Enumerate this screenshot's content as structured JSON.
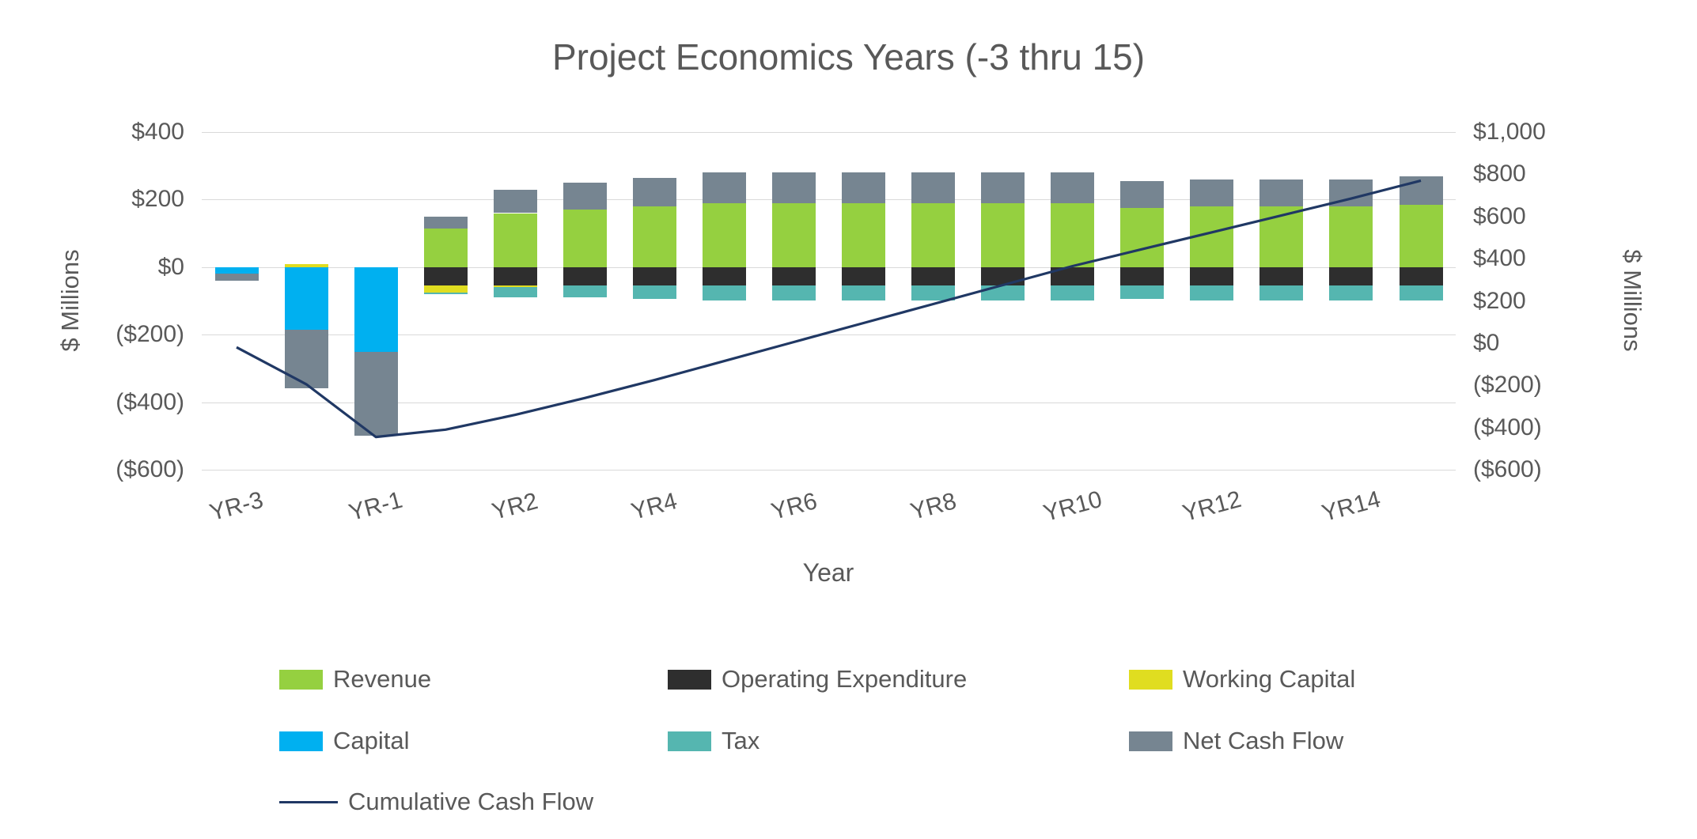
{
  "chart_data": {
    "type": "bar",
    "title": "Project Economics Years (-3 thru 15)",
    "xlabel": "Year",
    "ylabel_left": "$ Millions",
    "ylabel_right": "$ Millions",
    "grid": true,
    "legend_position": "bottom",
    "left_axis": {
      "min": -600,
      "max": 400,
      "ticks": [
        {
          "value": 400,
          "label": "$400"
        },
        {
          "value": 200,
          "label": "$200"
        },
        {
          "value": 0,
          "label": "$0"
        },
        {
          "value": -200,
          "label": "($200)"
        },
        {
          "value": -400,
          "label": "($400)"
        },
        {
          "value": -600,
          "label": "($600)"
        }
      ]
    },
    "right_axis": {
      "min": -600,
      "max": 1000,
      "ticks": [
        {
          "value": 1000,
          "label": "$1,000"
        },
        {
          "value": 800,
          "label": "$800"
        },
        {
          "value": 600,
          "label": "$600"
        },
        {
          "value": 400,
          "label": "$400"
        },
        {
          "value": 200,
          "label": "$200"
        },
        {
          "value": 0,
          "label": "$0"
        },
        {
          "value": -200,
          "label": "($200)"
        },
        {
          "value": -400,
          "label": "($400)"
        },
        {
          "value": -600,
          "label": "($600)"
        }
      ]
    },
    "categories": [
      "YR-3",
      "YR-2",
      "YR-1",
      "YR1",
      "YR2",
      "YR3",
      "YR4",
      "YR5",
      "YR6",
      "YR7",
      "YR8",
      "YR9",
      "YR10",
      "YR11",
      "YR12",
      "YR13",
      "YR14",
      "YR15"
    ],
    "x_ticks": [
      {
        "index": 0,
        "label": "YR-3"
      },
      {
        "index": 2,
        "label": "YR-1"
      },
      {
        "index": 4,
        "label": "YR2"
      },
      {
        "index": 6,
        "label": "YR4"
      },
      {
        "index": 8,
        "label": "YR6"
      },
      {
        "index": 10,
        "label": "YR8"
      },
      {
        "index": 12,
        "label": "YR10"
      },
      {
        "index": 14,
        "label": "YR12"
      },
      {
        "index": 16,
        "label": "YR14"
      }
    ],
    "series": [
      {
        "name": "Revenue",
        "color": "#95d040",
        "values": [
          0,
          0,
          0,
          115,
          160,
          170,
          180,
          190,
          190,
          190,
          190,
          190,
          190,
          175,
          180,
          180,
          180,
          185
        ]
      },
      {
        "name": "Operating Expenditure",
        "color": "#2e2e2e",
        "values": [
          0,
          0,
          0,
          -55,
          -55,
          -55,
          -55,
          -55,
          -55,
          -55,
          -55,
          -55,
          -55,
          -55,
          -55,
          -55,
          -55,
          -55
        ]
      },
      {
        "name": "Working Capital",
        "color": "#e0dd20",
        "values": [
          0,
          10,
          0,
          -20,
          -5,
          0,
          0,
          0,
          0,
          0,
          0,
          0,
          0,
          0,
          0,
          0,
          0,
          0
        ]
      },
      {
        "name": "Capital",
        "color": "#00b0f0",
        "values": [
          -20,
          -185,
          -250,
          0,
          0,
          0,
          0,
          0,
          0,
          0,
          0,
          0,
          0,
          0,
          0,
          0,
          0,
          0
        ]
      },
      {
        "name": "Tax",
        "color": "#55b6b0",
        "values": [
          0,
          0,
          0,
          -5,
          -30,
          -35,
          -40,
          -45,
          -45,
          -45,
          -45,
          -45,
          -45,
          -40,
          -45,
          -45,
          -45,
          -45
        ]
      },
      {
        "name": "Net Cash Flow",
        "color": "#768591",
        "values": [
          -20,
          -175,
          -250,
          35,
          70,
          80,
          85,
          90,
          90,
          90,
          90,
          90,
          90,
          80,
          80,
          80,
          80,
          85
        ]
      }
    ],
    "line_series": {
      "name": "Cumulative Cash Flow",
      "color": "#203864",
      "axis": "right",
      "values": [
        -20,
        -195,
        -445,
        -410,
        -340,
        -260,
        -175,
        -85,
        5,
        95,
        185,
        275,
        365,
        445,
        525,
        605,
        685,
        770
      ]
    }
  }
}
